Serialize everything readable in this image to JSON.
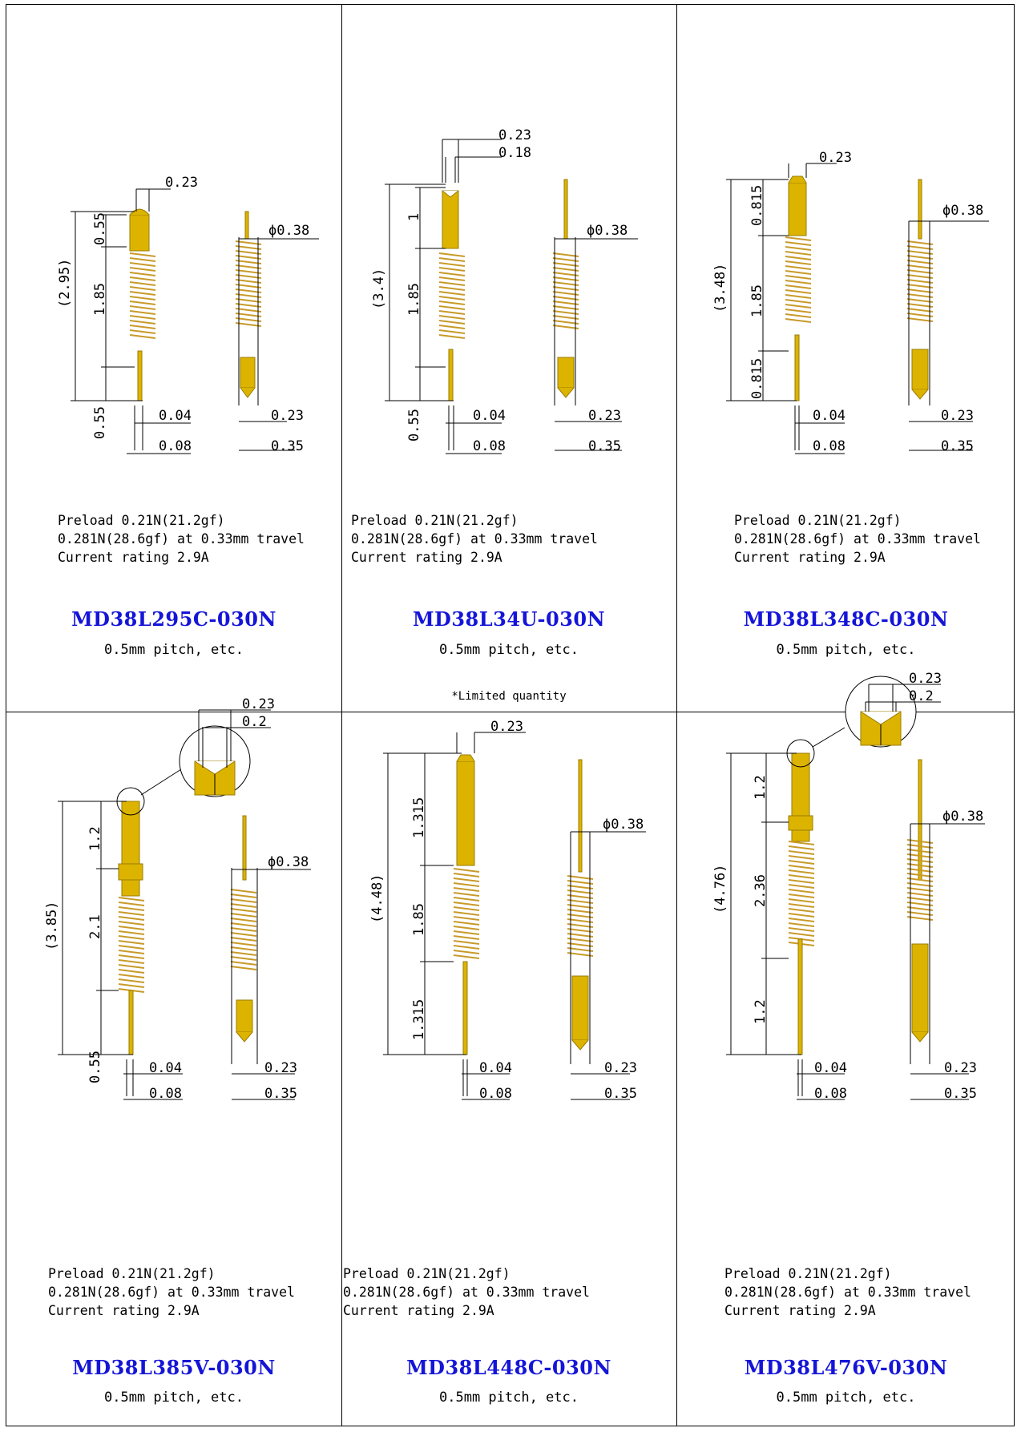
{
  "specs": {
    "preload": "Preload 0.21N(21.2gf)",
    "travel": "0.281N(28.6gf) at 0.33mm travel",
    "current": "Current rating 2.9A",
    "pitch": "0.5mm pitch, etc."
  },
  "colors": {
    "gold": "#dcb400",
    "gold_dark": "#9a7b00",
    "spring": "#c89a2a",
    "model_text": "#1515d8"
  },
  "products": [
    {
      "model": "MD38L295C-030N",
      "note": "",
      "dims": {
        "total": "(2.95)",
        "seg1": "0.55",
        "seg2": "1.85",
        "seg3": "0.55",
        "tip_w": "0.23",
        "tail_w": "0.04",
        "tail_w2": "0.08",
        "bot_w": "0.23",
        "bot_w2": "0.35",
        "dia": "ϕ0.38"
      }
    },
    {
      "model": "MD38L34U-030N",
      "note": "*Limited quantity",
      "dims": {
        "total": "(3.4)",
        "seg1": "1",
        "seg2": "1.85",
        "seg3": "0.55",
        "tip_w": "0.23",
        "tip_w2": "0.18",
        "tail_w": "0.04",
        "tail_w2": "0.08",
        "bot_w": "0.23",
        "bot_w2": "0.35",
        "dia": "ϕ0.38"
      }
    },
    {
      "model": "MD38L348C-030N",
      "note": "",
      "dims": {
        "total": "(3.48)",
        "seg1": "0.815",
        "seg2": "1.85",
        "seg3": "0.815",
        "tip_w": "0.23",
        "tail_w": "0.04",
        "tail_w2": "0.08",
        "bot_w": "0.23",
        "bot_w2": "0.35",
        "dia": "ϕ0.38"
      }
    },
    {
      "model": "MD38L385V-030N",
      "note": "",
      "dims": {
        "total": "(3.85)",
        "seg1": "1.2",
        "seg2": "2.1",
        "seg3": "0.55",
        "tip_w": "0.23",
        "tip_w2": "0.2",
        "tail_w": "0.04",
        "tail_w2": "0.08",
        "bot_w": "0.23",
        "bot_w2": "0.35",
        "dia": "ϕ0.38"
      }
    },
    {
      "model": "MD38L448C-030N",
      "note": "",
      "dims": {
        "total": "(4.48)",
        "seg1": "1.315",
        "seg2": "1.85",
        "seg3": "1.315",
        "tip_w": "0.23",
        "tail_w": "0.04",
        "tail_w2": "0.08",
        "bot_w": "0.23",
        "bot_w2": "0.35",
        "dia": "ϕ0.38"
      }
    },
    {
      "model": "MD38L476V-030N",
      "note": "",
      "dims": {
        "total": "(4.76)",
        "seg1": "1.2",
        "seg2": "2.36",
        "seg3": "1.2",
        "tip_w": "0.23",
        "tip_w2": "0.2",
        "tail_w": "0.04",
        "tail_w2": "0.08",
        "bot_w": "0.23",
        "bot_w2": "0.35",
        "dia": "ϕ0.38"
      }
    }
  ]
}
